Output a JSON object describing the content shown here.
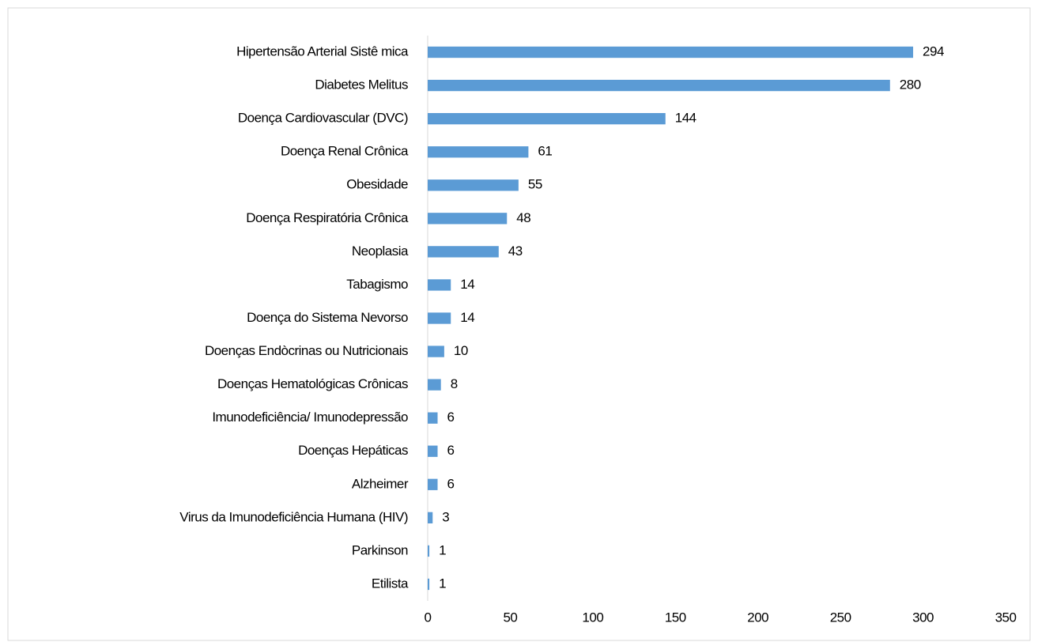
{
  "chart_data": {
    "type": "barh",
    "categories": [
      "Hipertensão Arterial Sistê mica",
      "Diabetes Melitus",
      "Doença Cardiovascular (DVC)",
      "Doença Renal Crônica",
      "Obesidade",
      "Doença Respiratória Crônica",
      "Neoplasia",
      "Tabagismo",
      "Doença do Sistema Nevorso",
      "Doenças Endòcrinas ou Nutricionais",
      "Doenças Hematológicas Crônicas",
      "Imunodeficiência/ Imunodepressão",
      "Doenças Hepáticas",
      "Alzheimer",
      "Virus da Imunodeficiência Humana (HIV)",
      "Parkinson",
      "Etilista"
    ],
    "values": [
      294,
      280,
      144,
      61,
      55,
      48,
      43,
      14,
      14,
      10,
      8,
      6,
      6,
      6,
      3,
      1,
      1
    ],
    "color": "#5b9bd5",
    "xlim": [
      0,
      350
    ],
    "xticks": [
      0,
      50,
      100,
      150,
      200,
      250,
      300,
      350
    ],
    "grid": false
  }
}
